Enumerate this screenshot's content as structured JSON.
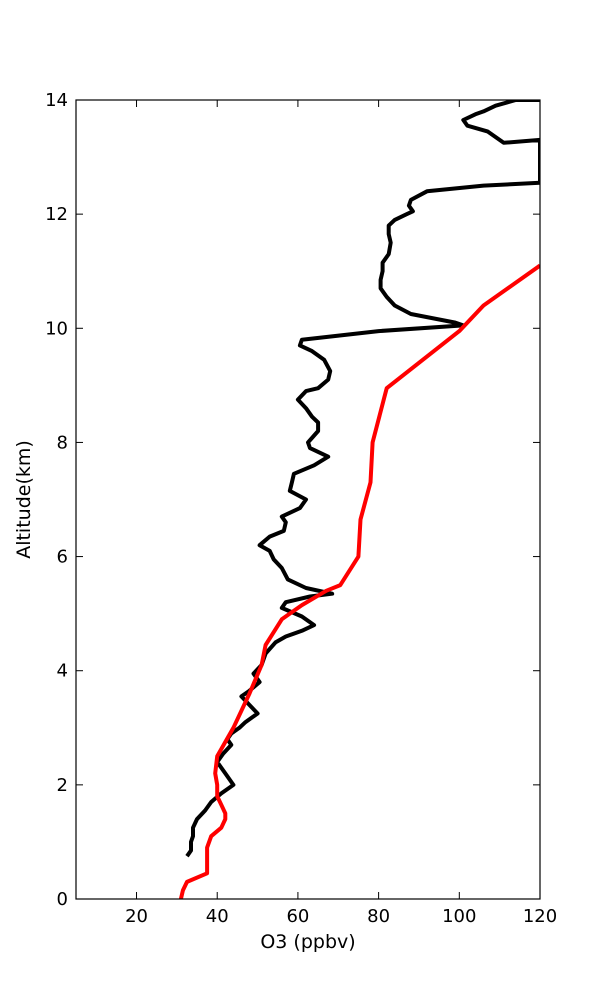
{
  "chart_data": {
    "type": "line",
    "title": "",
    "xlabel": "O3 (ppbv)",
    "ylabel": "Altitude(km)",
    "xlim": [
      5,
      120
    ],
    "ylim": [
      0,
      14
    ],
    "xticks": [
      "20",
      "40",
      "60",
      "80",
      "100",
      "120"
    ],
    "yticks": [
      "0",
      "2",
      "4",
      "6",
      "8",
      "10",
      "12",
      "14"
    ],
    "grid": false,
    "legend": "none",
    "series": [
      {
        "color": "#000000",
        "points": [
          [
            32.5,
            0.75
          ],
          [
            33.5,
            0.85
          ],
          [
            33.5,
            1.0
          ],
          [
            34,
            1.1
          ],
          [
            34,
            1.25
          ],
          [
            35,
            1.4
          ],
          [
            37,
            1.55
          ],
          [
            38.5,
            1.7
          ],
          [
            41,
            1.85
          ],
          [
            44,
            2.0
          ],
          [
            42,
            2.2
          ],
          [
            40,
            2.4
          ],
          [
            41.5,
            2.55
          ],
          [
            43.5,
            2.7
          ],
          [
            42.5,
            2.8
          ],
          [
            43.5,
            2.9
          ],
          [
            45.5,
            3.0
          ],
          [
            47,
            3.1
          ],
          [
            50,
            3.25
          ],
          [
            48,
            3.4
          ],
          [
            46,
            3.55
          ],
          [
            48,
            3.65
          ],
          [
            50.5,
            3.8
          ],
          [
            49,
            3.95
          ],
          [
            51,
            4.1
          ],
          [
            52,
            4.3
          ],
          [
            54.5,
            4.5
          ],
          [
            57,
            4.6
          ],
          [
            61,
            4.7
          ],
          [
            64,
            4.8
          ],
          [
            61,
            4.95
          ],
          [
            56,
            5.1
          ],
          [
            57,
            5.2
          ],
          [
            63,
            5.3
          ],
          [
            68.5,
            5.35
          ],
          [
            62,
            5.45
          ],
          [
            57.5,
            5.6
          ],
          [
            56,
            5.8
          ],
          [
            54,
            5.95
          ],
          [
            53,
            6.1
          ],
          [
            50.5,
            6.2
          ],
          [
            53,
            6.35
          ],
          [
            56.5,
            6.45
          ],
          [
            57,
            6.6
          ],
          [
            56,
            6.7
          ],
          [
            60.5,
            6.85
          ],
          [
            62,
            7.0
          ],
          [
            58,
            7.15
          ],
          [
            58.5,
            7.3
          ],
          [
            59,
            7.45
          ],
          [
            64,
            7.6
          ],
          [
            67.5,
            7.75
          ],
          [
            63,
            7.9
          ],
          [
            62.5,
            8.0
          ],
          [
            65,
            8.2
          ],
          [
            65,
            8.35
          ],
          [
            63.5,
            8.45
          ],
          [
            62,
            8.6
          ],
          [
            60,
            8.75
          ],
          [
            62,
            8.9
          ],
          [
            65,
            8.95
          ],
          [
            67.5,
            9.1
          ],
          [
            68,
            9.25
          ],
          [
            66.5,
            9.45
          ],
          [
            63.5,
            9.6
          ],
          [
            60.5,
            9.7
          ],
          [
            61,
            9.8
          ],
          [
            80,
            9.95
          ],
          [
            101,
            10.05
          ],
          [
            99,
            10.1
          ],
          [
            88,
            10.25
          ],
          [
            84,
            10.4
          ],
          [
            82,
            10.55
          ],
          [
            80.5,
            10.7
          ],
          [
            80.5,
            10.85
          ],
          [
            81,
            11.0
          ],
          [
            81,
            11.15
          ],
          [
            82.5,
            11.3
          ],
          [
            83,
            11.5
          ],
          [
            82.5,
            11.65
          ],
          [
            82.5,
            11.8
          ],
          [
            84,
            11.9
          ],
          [
            87,
            12.0
          ],
          [
            88.5,
            12.05
          ],
          [
            87.5,
            12.15
          ],
          [
            88,
            12.25
          ],
          [
            92,
            12.4
          ],
          [
            106,
            12.5
          ],
          [
            120,
            12.55
          ],
          [
            120,
            13.3
          ],
          [
            111,
            13.25
          ],
          [
            107,
            13.45
          ],
          [
            102,
            13.55
          ],
          [
            101,
            13.65
          ],
          [
            104,
            13.75
          ],
          [
            106,
            13.8
          ],
          [
            109,
            13.9
          ],
          [
            114,
            14.0
          ],
          [
            120,
            14.0
          ]
        ]
      },
      {
        "color": "#ff0000",
        "points": [
          [
            31,
            0.0
          ],
          [
            31.5,
            0.15
          ],
          [
            32.5,
            0.3
          ],
          [
            37.5,
            0.45
          ],
          [
            37.5,
            0.7
          ],
          [
            37.5,
            0.9
          ],
          [
            38.5,
            1.1
          ],
          [
            41,
            1.25
          ],
          [
            42,
            1.4
          ],
          [
            42,
            1.5
          ],
          [
            41,
            1.65
          ],
          [
            40,
            1.8
          ],
          [
            40,
            2.0
          ],
          [
            39.5,
            2.2
          ],
          [
            40,
            2.5
          ],
          [
            44,
            3.0
          ],
          [
            48,
            3.6
          ],
          [
            51,
            4.1
          ],
          [
            52,
            4.45
          ],
          [
            56,
            4.9
          ],
          [
            61,
            5.15
          ],
          [
            67,
            5.4
          ],
          [
            70.5,
            5.5
          ],
          [
            75,
            6.0
          ],
          [
            75.5,
            6.65
          ],
          [
            78,
            7.3
          ],
          [
            78.5,
            8.0
          ],
          [
            82,
            8.95
          ],
          [
            100,
            9.95
          ],
          [
            106,
            10.4
          ],
          [
            120,
            11.1
          ]
        ]
      }
    ]
  }
}
